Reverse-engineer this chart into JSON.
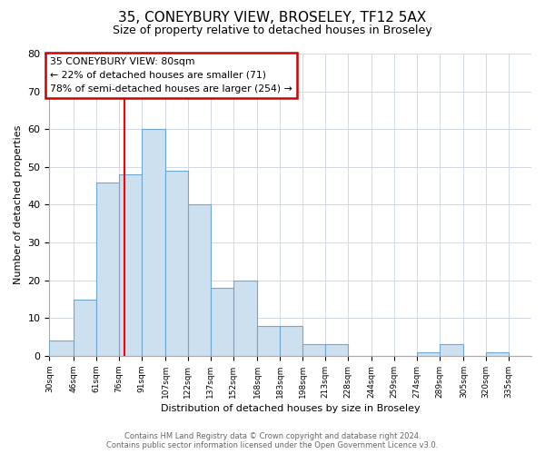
{
  "title": "35, CONEYBURY VIEW, BROSELEY, TF12 5AX",
  "subtitle": "Size of property relative to detached houses in Broseley",
  "xlabel": "Distribution of detached houses by size in Broseley",
  "ylabel": "Number of detached properties",
  "bin_labels": [
    "30sqm",
    "46sqm",
    "61sqm",
    "76sqm",
    "91sqm",
    "107sqm",
    "122sqm",
    "137sqm",
    "152sqm",
    "168sqm",
    "183sqm",
    "198sqm",
    "213sqm",
    "228sqm",
    "244sqm",
    "259sqm",
    "274sqm",
    "289sqm",
    "305sqm",
    "320sqm",
    "335sqm"
  ],
  "bin_edges": [
    30,
    46,
    61,
    76,
    91,
    107,
    122,
    137,
    152,
    168,
    183,
    198,
    213,
    228,
    244,
    259,
    274,
    289,
    305,
    320,
    335
  ],
  "bar_heights": [
    4,
    15,
    46,
    48,
    60,
    49,
    40,
    18,
    20,
    8,
    8,
    3,
    3,
    0,
    0,
    0,
    1,
    3,
    0,
    1,
    0
  ],
  "bar_color": "#cde0f0",
  "bar_edgecolor": "#6ea8d0",
  "redline_x": 80,
  "ylim": [
    0,
    80
  ],
  "yticks": [
    0,
    10,
    20,
    30,
    40,
    50,
    60,
    70,
    80
  ],
  "annotation_title": "35 CONEYBURY VIEW: 80sqm",
  "annotation_line1": "← 22% of detached houses are smaller (71)",
  "annotation_line2": "78% of semi-detached houses are larger (254) →",
  "annotation_box_color": "#ffffff",
  "annotation_box_edgecolor": "#cc0000",
  "footer_line1": "Contains HM Land Registry data © Crown copyright and database right 2024.",
  "footer_line2": "Contains public sector information licensed under the Open Government Licence v3.0.",
  "background_color": "#ffffff",
  "grid_color": "#d0d8e4"
}
